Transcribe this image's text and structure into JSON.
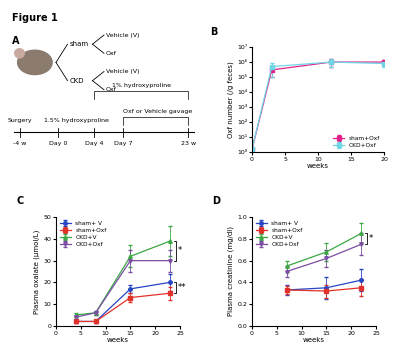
{
  "figure_title": "Figure 1",
  "diagram": {
    "label": "A",
    "groups": [
      {
        "name": "sham",
        "arms": [
          "Vehicle (V)",
          "Oxf"
        ]
      },
      {
        "name": "CKD",
        "arms": [
          "Vehicle (V)",
          "Oxf"
        ]
      }
    ],
    "timeline": {
      "points": [
        "-4 w",
        "Day 0",
        "Day 4",
        "Day 7",
        "23 w"
      ],
      "surgery": "Surgery",
      "initial_diet": "1.5% hydroxyproline",
      "maintenance_diet": "1% hydroxyproline",
      "treatment": "Oxf or Vehicle gavage"
    }
  },
  "chart_data": [
    {
      "type": "line",
      "label": "B",
      "x_label": "weeks",
      "y_label": "Oxf number (/g feces)",
      "log": "y",
      "legend": "lower right",
      "x": [
        0,
        3,
        12,
        20
      ],
      "xlim": [
        0,
        20
      ],
      "xticks": [
        0,
        5,
        10,
        15,
        20
      ],
      "ylim": [
        1,
        10000000
      ],
      "yticks": [
        {
          "value": 1,
          "label": "10⁰"
        },
        {
          "value": 10,
          "label": "10¹"
        },
        {
          "value": 100,
          "label": "10²"
        },
        {
          "value": 1000,
          "label": "10³"
        },
        {
          "value": 10000,
          "label": "10⁴"
        },
        {
          "value": 100000,
          "label": "10⁵"
        },
        {
          "value": 1000000,
          "label": "10⁶"
        },
        {
          "value": 10000000,
          "label": "10⁷"
        }
      ],
      "series": [
        {
          "name": "sham+Oxf",
          "color": "#e0218a",
          "marker": "s",
          "line_style": "solid",
          "values": [
            1.5,
            300000,
            1000000,
            1000000
          ],
          "errors": [
            0,
            200000,
            500000,
            400000
          ]
        },
        {
          "name": "CKD+Oxf",
          "color": "#6fd6e6",
          "marker": "s",
          "line_style": "solid",
          "values": [
            1.5,
            500000,
            1000000,
            800000
          ],
          "errors": [
            0,
            400000,
            500000,
            300000
          ]
        }
      ]
    },
    {
      "type": "line",
      "label": "C",
      "x_label": "weeks",
      "y_label": "Plasma oxalate (μmol/L)",
      "legend": "upper left",
      "x": [
        4,
        8,
        15,
        23
      ],
      "xlim": [
        0,
        25
      ],
      "xticks": [
        0,
        5,
        10,
        15,
        20,
        25
      ],
      "ylim": [
        0,
        50
      ],
      "yticks": [
        0,
        10,
        20,
        30,
        40,
        50
      ],
      "series": [
        {
          "name": "sham+ V",
          "color": "#2545c4",
          "marker": "o",
          "line_style": "solid",
          "values": [
            2,
            2,
            17,
            20
          ],
          "errors": [
            0.5,
            0.5,
            2,
            4
          ]
        },
        {
          "name": "sham+Oxf",
          "color": "#e0322a",
          "marker": "s",
          "line_style": "solid",
          "values": [
            2,
            2,
            13,
            15
          ],
          "errors": [
            0.5,
            0.5,
            2,
            3
          ]
        },
        {
          "name": "CKD+V",
          "color": "#3aa843",
          "marker": "^",
          "line_style": "solid",
          "values": [
            5,
            6,
            32,
            39
          ],
          "errors": [
            1,
            1,
            5,
            7
          ]
        },
        {
          "name": "CKD+Oxf",
          "color": "#7b4ea3",
          "marker": "v",
          "line_style": "solid",
          "values": [
            4,
            6,
            30,
            30
          ],
          "errors": [
            1,
            1,
            5,
            5
          ]
        }
      ],
      "annotations": [
        {
          "text": "*",
          "between": [
            "CKD+V",
            "CKD+Oxf"
          ]
        },
        {
          "text": "**",
          "between": [
            "sham+ V",
            "sham+Oxf"
          ]
        }
      ]
    },
    {
      "type": "line",
      "label": "D",
      "x_label": "weeks",
      "y_label": "Plasma creatinine (mg/dl)",
      "legend": "upper left",
      "x": [
        7,
        15,
        22
      ],
      "xlim": [
        0,
        25
      ],
      "xticks": [
        0,
        5,
        10,
        15,
        20,
        25
      ],
      "ylim": [
        0.0,
        1.0
      ],
      "yticks": [
        0.0,
        0.2,
        0.4,
        0.6,
        0.8,
        1.0
      ],
      "series": [
        {
          "name": "sham+ V",
          "color": "#2545c4",
          "marker": "o",
          "line_style": "solid",
          "values": [
            0.33,
            0.35,
            0.42
          ],
          "errors": [
            0.05,
            0.1,
            0.1
          ]
        },
        {
          "name": "sham+Oxf",
          "color": "#e0322a",
          "marker": "s",
          "line_style": "solid",
          "values": [
            0.33,
            0.32,
            0.35
          ],
          "errors": [
            0.04,
            0.06,
            0.08
          ]
        },
        {
          "name": "CKD+V",
          "color": "#3aa843",
          "marker": "^",
          "line_style": "solid",
          "values": [
            0.55,
            0.68,
            0.85
          ],
          "errors": [
            0.05,
            0.08,
            0.1
          ]
        },
        {
          "name": "CKD+Oxf",
          "color": "#7b4ea3",
          "marker": "v",
          "line_style": "solid",
          "values": [
            0.5,
            0.62,
            0.75
          ],
          "errors": [
            0.05,
            0.08,
            0.1
          ]
        }
      ],
      "annotations": [
        {
          "text": "*",
          "between": [
            "CKD+V",
            "CKD+Oxf"
          ]
        }
      ]
    }
  ]
}
